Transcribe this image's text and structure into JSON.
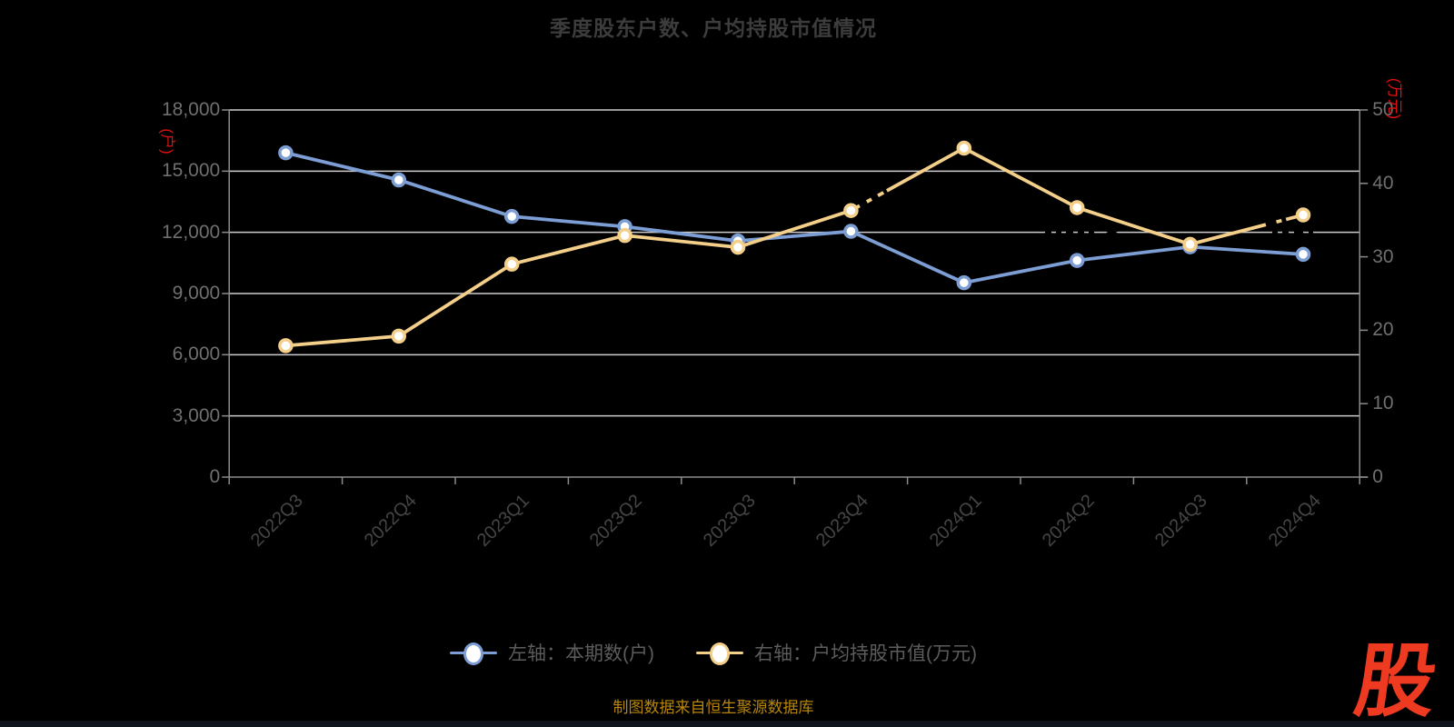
{
  "title": "季度股东户数、户均持股市值情况",
  "source_note": "制图数据来自恒生聚源数据库",
  "logo_text": "股",
  "left_axis": {
    "name": "(户)",
    "ticks": [
      "18,000",
      "15,000",
      "12,000",
      "9,000",
      "6,000",
      "3,000",
      "0"
    ]
  },
  "right_axis": {
    "name": "(万元)",
    "ticks": [
      "50",
      "40",
      "30",
      "20",
      "10",
      "0"
    ]
  },
  "legend": {
    "items": [
      {
        "label": "左轴：本期数(户)",
        "color": "#7d9ed4"
      },
      {
        "label": "右轴：户均持股市值(万元)",
        "color": "#f4cf8a"
      }
    ]
  },
  "colors": {
    "shareholders_line": "#7d9ed4",
    "market_value_line": "#f4cf8a",
    "marker_fill": "#ffffff",
    "gridline": "#cdcdcd",
    "axis": "#8c8c8c",
    "title_text": "#3c3c3c",
    "axis_name_red": "#e01010",
    "source_gold": "#b8860b",
    "logo_red": "#ee3a20"
  },
  "chart_data": {
    "type": "line",
    "title": "季度股东户数、户均持股市值情况",
    "categories": [
      "2022Q3",
      "2022Q4",
      "2023Q1",
      "2023Q2",
      "2023Q3",
      "2023Q4",
      "2024Q1",
      "2024Q2",
      "2024Q3",
      "2024Q4"
    ],
    "series": [
      {
        "name": "左轴：本期数(户)",
        "axis": "left",
        "color": "#7d9ed4",
        "values": [
          15900,
          14570,
          12780,
          12280,
          11580,
          12050,
          9530,
          10620,
          11290,
          10920
        ]
      },
      {
        "name": "右轴：户均持股市值(万元)",
        "axis": "right",
        "color": "#f4cf8a",
        "values": [
          17.9,
          19.2,
          29.0,
          32.9,
          31.3,
          36.3,
          44.8,
          36.7,
          31.7,
          35.7
        ]
      }
    ],
    "left_ylabel": "(户)",
    "right_ylabel": "(万元)",
    "left_ylim": [
      0,
      18000
    ],
    "right_ylim": [
      0,
      50
    ],
    "left_tick_step": 3000,
    "right_tick_step": 10,
    "grid": true,
    "legend_position": "bottom"
  }
}
